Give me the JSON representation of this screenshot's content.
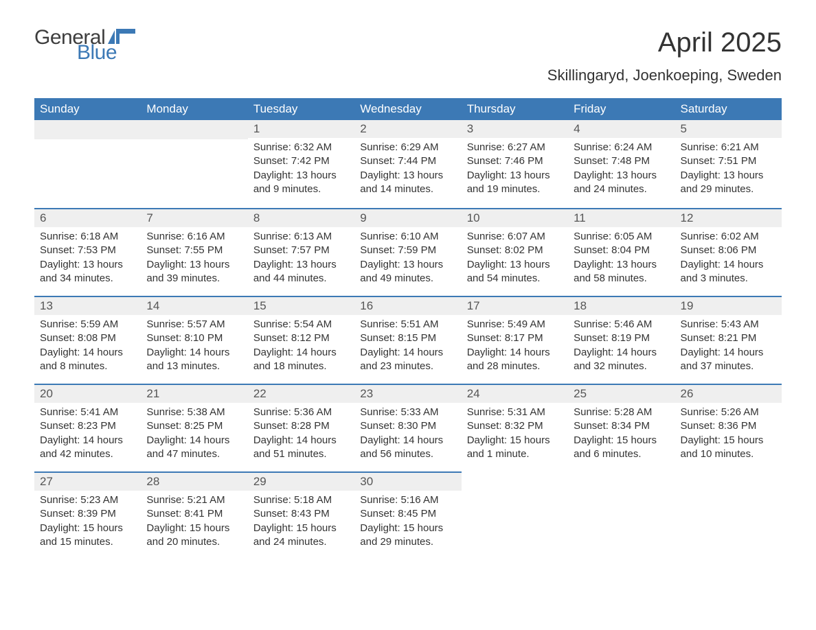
{
  "logo": {
    "text1": "General",
    "text2": "Blue",
    "flag_color": "#3c79b5"
  },
  "title": "April 2025",
  "location": "Skillingaryd, Joenkoeping, Sweden",
  "colors": {
    "header_bg": "#3c79b5",
    "header_text": "#ffffff",
    "daynum_bg": "#efefef",
    "row_border": "#3c79b5",
    "body_text": "#333333"
  },
  "day_labels": [
    "Sunday",
    "Monday",
    "Tuesday",
    "Wednesday",
    "Thursday",
    "Friday",
    "Saturday"
  ],
  "weeks": [
    [
      null,
      null,
      {
        "n": "1",
        "sr": "Sunrise: 6:32 AM",
        "ss": "Sunset: 7:42 PM",
        "dl": "Daylight: 13 hours and 9 minutes."
      },
      {
        "n": "2",
        "sr": "Sunrise: 6:29 AM",
        "ss": "Sunset: 7:44 PM",
        "dl": "Daylight: 13 hours and 14 minutes."
      },
      {
        "n": "3",
        "sr": "Sunrise: 6:27 AM",
        "ss": "Sunset: 7:46 PM",
        "dl": "Daylight: 13 hours and 19 minutes."
      },
      {
        "n": "4",
        "sr": "Sunrise: 6:24 AM",
        "ss": "Sunset: 7:48 PM",
        "dl": "Daylight: 13 hours and 24 minutes."
      },
      {
        "n": "5",
        "sr": "Sunrise: 6:21 AM",
        "ss": "Sunset: 7:51 PM",
        "dl": "Daylight: 13 hours and 29 minutes."
      }
    ],
    [
      {
        "n": "6",
        "sr": "Sunrise: 6:18 AM",
        "ss": "Sunset: 7:53 PM",
        "dl": "Daylight: 13 hours and 34 minutes."
      },
      {
        "n": "7",
        "sr": "Sunrise: 6:16 AM",
        "ss": "Sunset: 7:55 PM",
        "dl": "Daylight: 13 hours and 39 minutes."
      },
      {
        "n": "8",
        "sr": "Sunrise: 6:13 AM",
        "ss": "Sunset: 7:57 PM",
        "dl": "Daylight: 13 hours and 44 minutes."
      },
      {
        "n": "9",
        "sr": "Sunrise: 6:10 AM",
        "ss": "Sunset: 7:59 PM",
        "dl": "Daylight: 13 hours and 49 minutes."
      },
      {
        "n": "10",
        "sr": "Sunrise: 6:07 AM",
        "ss": "Sunset: 8:02 PM",
        "dl": "Daylight: 13 hours and 54 minutes."
      },
      {
        "n": "11",
        "sr": "Sunrise: 6:05 AM",
        "ss": "Sunset: 8:04 PM",
        "dl": "Daylight: 13 hours and 58 minutes."
      },
      {
        "n": "12",
        "sr": "Sunrise: 6:02 AM",
        "ss": "Sunset: 8:06 PM",
        "dl": "Daylight: 14 hours and 3 minutes."
      }
    ],
    [
      {
        "n": "13",
        "sr": "Sunrise: 5:59 AM",
        "ss": "Sunset: 8:08 PM",
        "dl": "Daylight: 14 hours and 8 minutes."
      },
      {
        "n": "14",
        "sr": "Sunrise: 5:57 AM",
        "ss": "Sunset: 8:10 PM",
        "dl": "Daylight: 14 hours and 13 minutes."
      },
      {
        "n": "15",
        "sr": "Sunrise: 5:54 AM",
        "ss": "Sunset: 8:12 PM",
        "dl": "Daylight: 14 hours and 18 minutes."
      },
      {
        "n": "16",
        "sr": "Sunrise: 5:51 AM",
        "ss": "Sunset: 8:15 PM",
        "dl": "Daylight: 14 hours and 23 minutes."
      },
      {
        "n": "17",
        "sr": "Sunrise: 5:49 AM",
        "ss": "Sunset: 8:17 PM",
        "dl": "Daylight: 14 hours and 28 minutes."
      },
      {
        "n": "18",
        "sr": "Sunrise: 5:46 AM",
        "ss": "Sunset: 8:19 PM",
        "dl": "Daylight: 14 hours and 32 minutes."
      },
      {
        "n": "19",
        "sr": "Sunrise: 5:43 AM",
        "ss": "Sunset: 8:21 PM",
        "dl": "Daylight: 14 hours and 37 minutes."
      }
    ],
    [
      {
        "n": "20",
        "sr": "Sunrise: 5:41 AM",
        "ss": "Sunset: 8:23 PM",
        "dl": "Daylight: 14 hours and 42 minutes."
      },
      {
        "n": "21",
        "sr": "Sunrise: 5:38 AM",
        "ss": "Sunset: 8:25 PM",
        "dl": "Daylight: 14 hours and 47 minutes."
      },
      {
        "n": "22",
        "sr": "Sunrise: 5:36 AM",
        "ss": "Sunset: 8:28 PM",
        "dl": "Daylight: 14 hours and 51 minutes."
      },
      {
        "n": "23",
        "sr": "Sunrise: 5:33 AM",
        "ss": "Sunset: 8:30 PM",
        "dl": "Daylight: 14 hours and 56 minutes."
      },
      {
        "n": "24",
        "sr": "Sunrise: 5:31 AM",
        "ss": "Sunset: 8:32 PM",
        "dl": "Daylight: 15 hours and 1 minute."
      },
      {
        "n": "25",
        "sr": "Sunrise: 5:28 AM",
        "ss": "Sunset: 8:34 PM",
        "dl": "Daylight: 15 hours and 6 minutes."
      },
      {
        "n": "26",
        "sr": "Sunrise: 5:26 AM",
        "ss": "Sunset: 8:36 PM",
        "dl": "Daylight: 15 hours and 10 minutes."
      }
    ],
    [
      {
        "n": "27",
        "sr": "Sunrise: 5:23 AM",
        "ss": "Sunset: 8:39 PM",
        "dl": "Daylight: 15 hours and 15 minutes."
      },
      {
        "n": "28",
        "sr": "Sunrise: 5:21 AM",
        "ss": "Sunset: 8:41 PM",
        "dl": "Daylight: 15 hours and 20 minutes."
      },
      {
        "n": "29",
        "sr": "Sunrise: 5:18 AM",
        "ss": "Sunset: 8:43 PM",
        "dl": "Daylight: 15 hours and 24 minutes."
      },
      {
        "n": "30",
        "sr": "Sunrise: 5:16 AM",
        "ss": "Sunset: 8:45 PM",
        "dl": "Daylight: 15 hours and 29 minutes."
      },
      null,
      null,
      null
    ]
  ]
}
